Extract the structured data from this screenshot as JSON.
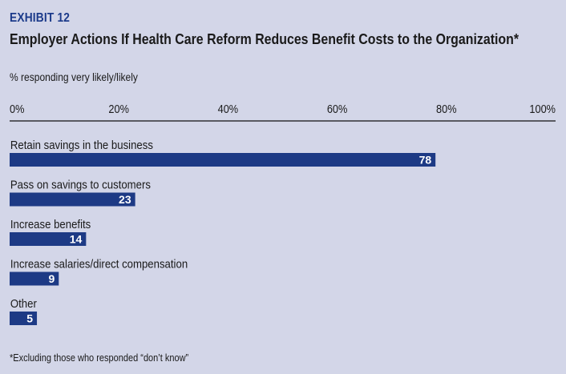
{
  "exhibit_label": "EXHIBIT 12",
  "chart_data": {
    "type": "bar",
    "orientation": "horizontal",
    "title": "Employer Actions If Health Care Reform Reduces Benefit Costs to the Organization*",
    "subtitle": "% responding very likely/likely",
    "categories": [
      "Retain savings in the business",
      "Pass on savings to customers",
      "Increase benefits",
      "Increase salaries/direct compensation",
      "Other"
    ],
    "values": [
      78,
      23,
      14,
      9,
      5
    ],
    "xlim": [
      0,
      100
    ],
    "ticks": [
      0,
      20,
      40,
      60,
      80,
      100
    ],
    "tick_labels": [
      "0%",
      "20%",
      "40%",
      "60%",
      "80%",
      "100%"
    ],
    "grid": false,
    "legend": "none"
  },
  "footnote": "*Excluding those who responded “don’t know”",
  "colors": {
    "background": "#d3d6e8",
    "bar": "#1d3a85",
    "exhibit": "#1b3a8a",
    "value_text": "#ffffff"
  }
}
